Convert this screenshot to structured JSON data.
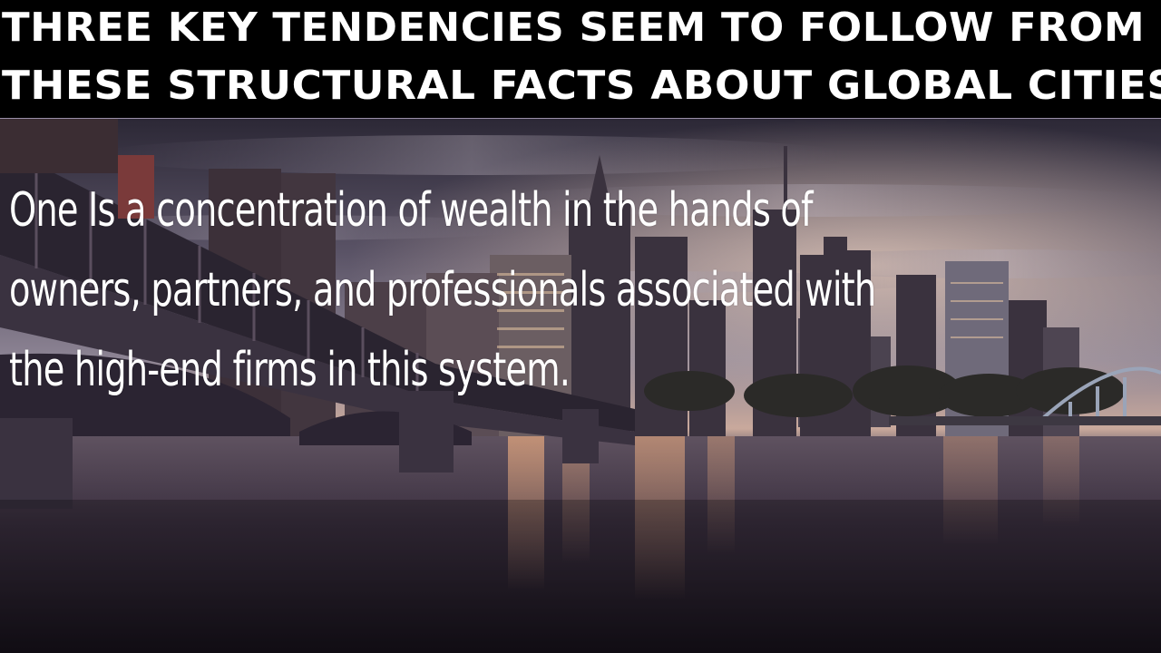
{
  "slide": {
    "title_line_1": "THREE KEY TENDENCIES SEEM TO FOLLOW FROM",
    "title_line_2": "THESE STRUCTURAL FACTS ABOUT GLOBAL CITIES",
    "body": "One Is a concentration of wealth in the hands of owners, partners, and professionals associated with the high-end firms in this system."
  },
  "colors": {
    "title_bar_bg": "#000000",
    "title_text": "#ffffff",
    "body_text": "#ffffff",
    "sky_top": "#3a3345",
    "sky_glow": "#d9b9a8",
    "water": "#2a2230"
  },
  "background_image": {
    "subject": "city-skyline-river-bridge"
  }
}
